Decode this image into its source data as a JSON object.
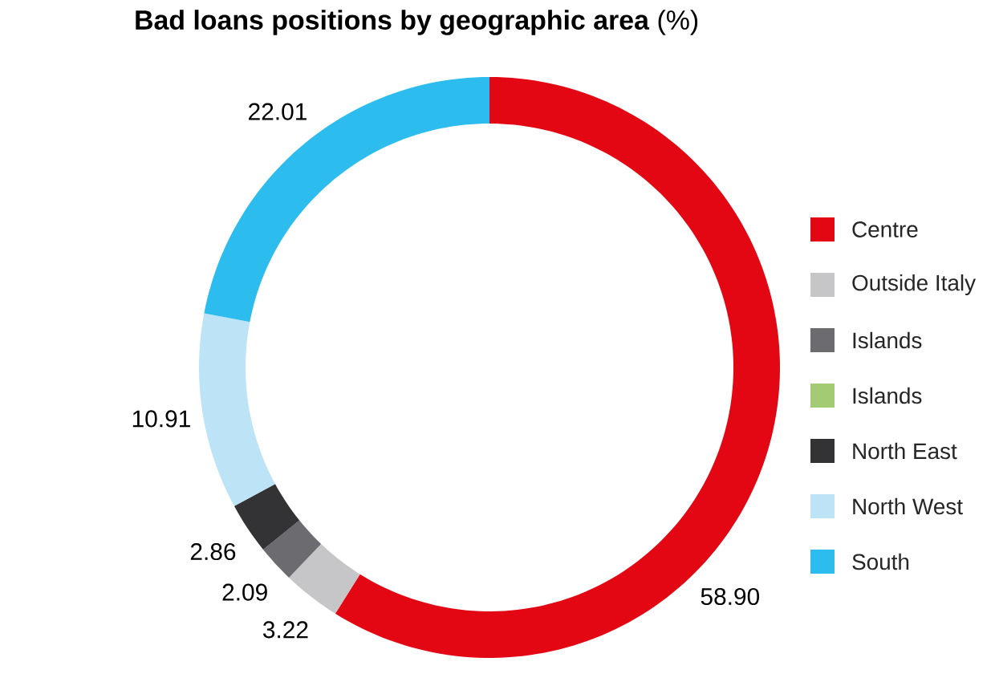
{
  "chart_data": {
    "type": "donut",
    "title": "**Bad loans positions by geographic area** (%)",
    "categories": [
      "Centre",
      "Outside Italy",
      "Islands",
      "Islands",
      "North East",
      "North West",
      "South"
    ],
    "values": [
      58.9,
      3.22,
      2.09,
      0,
      2.86,
      10.91,
      22.01
    ],
    "value_labels": [
      "58.90",
      "3.22",
      "2.09",
      null,
      "2.86",
      "10.91",
      "22.01"
    ],
    "colors": [
      "#e30613",
      "#c6c6c8",
      "#6b6b70",
      "#a2cb74",
      "#333335",
      "#bde3f6",
      "#2cbdee"
    ],
    "legend": "right"
  }
}
